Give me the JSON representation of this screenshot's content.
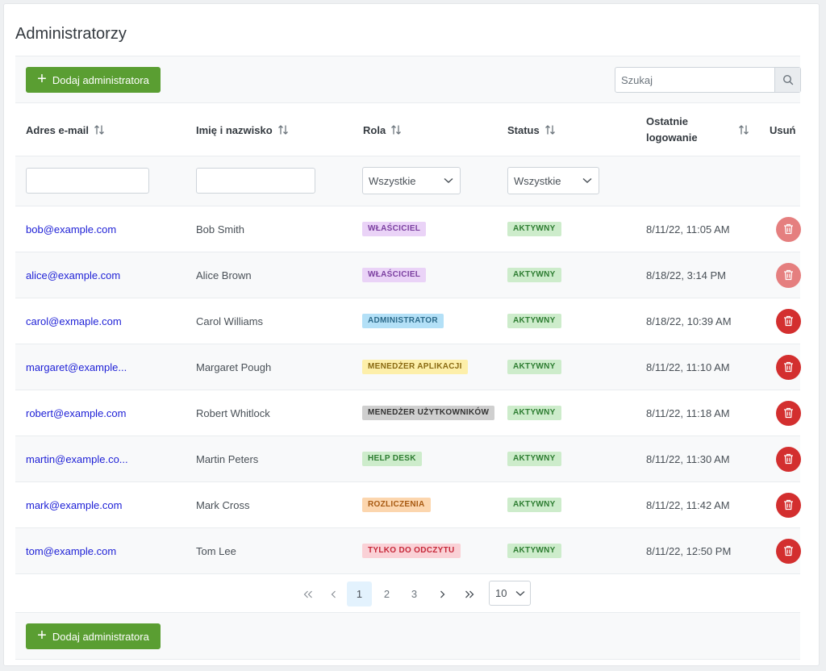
{
  "page_title": "Administratorzy",
  "toolbar": {
    "add_label": "Dodaj administratora",
    "search_placeholder": "Szukaj"
  },
  "columns": {
    "email": "Adres e-mail",
    "name": "Imię i nazwisko",
    "role": "Rola",
    "status": "Status",
    "last_login_1": "Ostatnie",
    "last_login_2": "logowanie",
    "delete": "Usuń"
  },
  "filters": {
    "role_selected": "Wszystkie",
    "status_selected": "Wszystkie"
  },
  "rows": [
    {
      "email": "bob@example.com",
      "name": "Bob Smith",
      "role": "WŁAŚCICIEL",
      "role_bg": "#ead3f7",
      "role_fg": "#7b3fa0",
      "status": "AKTYWNY",
      "last_login": "8/11/22, 11:05 AM",
      "delete_enabled": false
    },
    {
      "email": "alice@example.com",
      "name": "Alice Brown",
      "role": "WŁAŚCICIEL",
      "role_bg": "#ead3f7",
      "role_fg": "#7b3fa0",
      "status": "AKTYWNY",
      "last_login": "8/18/22, 3:14 PM",
      "delete_enabled": false
    },
    {
      "email": "carol@exmaple.com",
      "name": "Carol Williams",
      "role": "ADMINISTRATOR",
      "role_bg": "#b3e0f7",
      "role_fg": "#2c6a8a",
      "status": "AKTYWNY",
      "last_login": "8/18/22, 10:39 AM",
      "delete_enabled": true
    },
    {
      "email": "margaret@example...",
      "name": "Margaret Pough",
      "role": "MENEDŻER APLIKACJI",
      "role_bg": "#fdefaa",
      "role_fg": "#8a6a12",
      "status": "AKTYWNY",
      "last_login": "8/11/22, 11:10 AM",
      "delete_enabled": true
    },
    {
      "email": "robert@example.com",
      "name": "Robert Whitlock",
      "role": "MENEDŻER UŻYTKOWNIKÓW",
      "role_bg": "#cfcfcf",
      "role_fg": "#333333",
      "status": "AKTYWNY",
      "last_login": "8/11/22, 11:18 AM",
      "delete_enabled": true
    },
    {
      "email": "martin@example.co...",
      "name": "Martin Peters",
      "role": "HELP DESK",
      "role_bg": "#cdeccb",
      "role_fg": "#2e7d32",
      "status": "AKTYWNY",
      "last_login": "8/11/22, 11:30 AM",
      "delete_enabled": true
    },
    {
      "email": "mark@example.com",
      "name": "Mark Cross",
      "role": "ROZLICZENIA",
      "role_bg": "#fcd6ae",
      "role_fg": "#a85a12",
      "status": "AKTYWNY",
      "last_login": "8/11/22, 11:42 AM",
      "delete_enabled": true
    },
    {
      "email": "tom@example.com",
      "name": "Tom Lee",
      "role": "TYLKO DO ODCZYTU",
      "role_bg": "#fad1d6",
      "role_fg": "#c62839",
      "status": "AKTYWNY",
      "last_login": "8/11/22, 12:50 PM",
      "delete_enabled": true
    }
  ],
  "status_colors": {
    "bg": "#cdeccb",
    "fg": "#2e7d32"
  },
  "delete_colors": {
    "enabled": "#d32f2f",
    "disabled": "#e57f7f"
  },
  "pagination": {
    "pages": [
      "1",
      "2",
      "3"
    ],
    "current": "1",
    "per_page": "10"
  },
  "footer": {
    "add_label": "Dodaj administratora"
  },
  "icons": {
    "add": "plus-icon",
    "search": "search-icon",
    "sort": "sort-icon",
    "select": "chevron-down-icon",
    "delete": "trash-icon",
    "first": "double-chevron-left-icon",
    "prev": "chevron-left-icon",
    "next": "chevron-right-icon",
    "last": "double-chevron-right-icon"
  }
}
